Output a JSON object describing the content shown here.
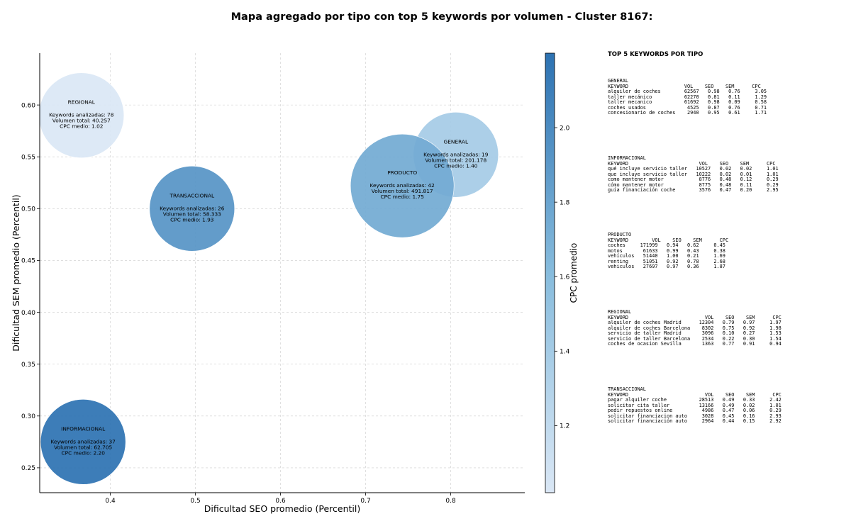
{
  "title": "Mapa agregado por tipo con top 5 keywords por volumen - Cluster 8167:",
  "chart_data": {
    "type": "scatter",
    "subtype": "bubble",
    "xlabel": "Dificultad SEO promedio (Percentil)",
    "ylabel": "Dificultad SEM promedio (Percentil)",
    "xlim": [
      0.317,
      0.887
    ],
    "ylim": [
      0.226,
      0.65
    ],
    "xticks": [
      "0.4",
      "0.5",
      "0.6",
      "0.7",
      "0.8"
    ],
    "yticks": [
      "0.25",
      "0.30",
      "0.35",
      "0.40",
      "0.45",
      "0.50",
      "0.55",
      "0.60"
    ],
    "grid": true,
    "colorbar": {
      "label": "CPC promedio",
      "range": [
        1.02,
        2.2
      ],
      "ticks": [
        "1.2",
        "1.4",
        "1.6",
        "1.8",
        "2.0"
      ],
      "colormap": [
        "#dae7f5",
        "#2d72b2"
      ]
    },
    "points": [
      {
        "tipo": "REGIONAL",
        "x": 0.366,
        "y": 0.59,
        "keywords_label": "Keywords analizadas: 78",
        "volumen_label": "Volumen total: 40.257",
        "cpc_label": "CPC medio: 1.02",
        "keywords": 78,
        "volumen": 40257,
        "cpc": 1.02
      },
      {
        "tipo": "GENERAL",
        "x": 0.806,
        "y": 0.552,
        "keywords_label": "Keywords analizadas: 19",
        "volumen_label": "Volumen total: 201.178",
        "cpc_label": "CPC medio: 1.40",
        "keywords": 19,
        "volumen": 201178,
        "cpc": 1.4
      },
      {
        "tipo": "PRODUCTO",
        "x": 0.743,
        "y": 0.522,
        "keywords_label": "Keywords analizadas: 42",
        "volumen_label": "Volumen total: 491.817",
        "cpc_label": "CPC medio: 1.75",
        "keywords": 42,
        "volumen": 491817,
        "cpc": 1.75
      },
      {
        "tipo": "TRANSACCIONAL",
        "x": 0.496,
        "y": 0.5,
        "keywords_label": "Keywords analizadas: 26",
        "volumen_label": "Volumen total: 58.333",
        "cpc_label": "CPC medio: 1.93",
        "keywords": 26,
        "volumen": 58333,
        "cpc": 1.93
      },
      {
        "tipo": "INFORMACIONAL",
        "x": 0.368,
        "y": 0.275,
        "keywords_label": "Keywords analizadas: 37",
        "volumen_label": "Volumen total: 62.705",
        "cpc_label": "CPC medio: 2.20",
        "keywords": 37,
        "volumen": 62705,
        "cpc": 2.2
      }
    ]
  },
  "panel": {
    "title": "TOP 5 KEYWORDS POR TIPO",
    "blocks": [
      {
        "id": "general",
        "text": "GENERAL\nKEYWORD                   VOL    SEO    SEM      CPC\nalquiler de coches        62567   0.98   0.76     3.05\ntaller mecánico           62270   0.81   0.11     1.29\ntaller mecanico           61692   0.98   0.09     0.58\ncoches usados              4525   0.87   0.76     0.71\nconcesionario de coches    2940   0.95   0.61     1.71"
      },
      {
        "id": "informacional",
        "text": "INFORMACIONAL\nKEYWORD                        VOL    SEO    SEM      CPC\nqué incluye servicio taller   10527   0.02   0.02     1.01\nque incluye servicio taller   10222   0.02   0.01     1.01\ncomo mantener motor            8776   0.48   0.12     0.29\ncómo mantener motor            8775   0.48   0.11     0.29\nguía financiación coche        3576   0.47   0.20     2.95"
      },
      {
        "id": "producto",
        "text": "PRODUCTO\nKEYWORD        VOL    SEO    SEM      CPC\ncoches     171999   0.94   0.62     0.45\nmotos       61633   0.99   0.43     0.38\nvehículos   51440   1.00   0.21     1.69\nrenting     51051   0.92   0.78     2.68\nvehiculos   27697   0.97   0.36     1.87"
      },
      {
        "id": "regional",
        "text": "REGIONAL\nKEYWORD                          VOL    SEO    SEM      CPC\nalquiler de coches Madrid      12304   0.79   0.97     1.97\nalquiler de coches Barcelona    8302   0.75   0.92     1.98\nservicio de taller Madrid       3096   0.10   0.27     1.53\nservicio de taller Barcelona    2534   0.22   0.30     1.54\ncoches de ocasion Sevilla       1363   0.77   0.91     0.94"
      },
      {
        "id": "transaccional",
        "text": "TRANSACCIONAL\nKEYWORD                          VOL    SEO    SEM      CPC\npagar alquiler coche           28513   0.49   0.33     2.42\nsolicitar cita taller          13166   0.49   0.02     1.01\npedir repuestos online          4986   0.47   0.06     0.29\nsolicitar financiacion auto     3028   0.45   0.16     2.93\nsolicitar financiación auto     2964   0.44   0.15     2.92"
      }
    ]
  }
}
